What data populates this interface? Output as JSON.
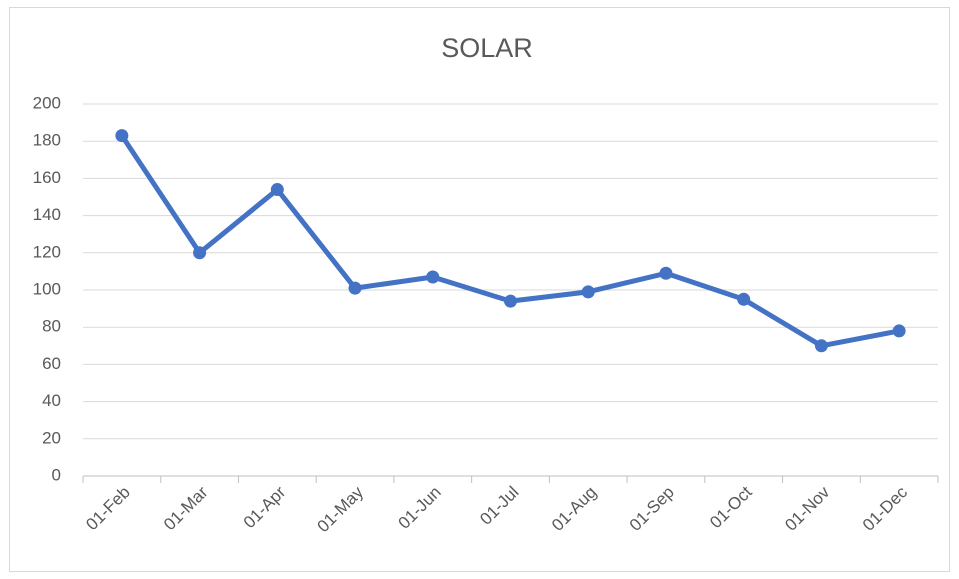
{
  "chart_data": {
    "type": "line",
    "title": "SOLAR",
    "categories": [
      "01-Feb",
      "01-Mar",
      "01-Apr",
      "01-May",
      "01-Jun",
      "01-Jul",
      "01-Aug",
      "01-Sep",
      "01-Oct",
      "01-Nov",
      "01-Dec"
    ],
    "series": [
      {
        "name": "SOLAR",
        "color": "#4472c4",
        "values": [
          183,
          120,
          154,
          101,
          107,
          94,
          99,
          109,
          95,
          70,
          78
        ]
      }
    ],
    "ylim": [
      0,
      200
    ],
    "yticks": [
      0,
      20,
      40,
      60,
      80,
      100,
      120,
      140,
      160,
      180,
      200
    ],
    "grid": true
  }
}
